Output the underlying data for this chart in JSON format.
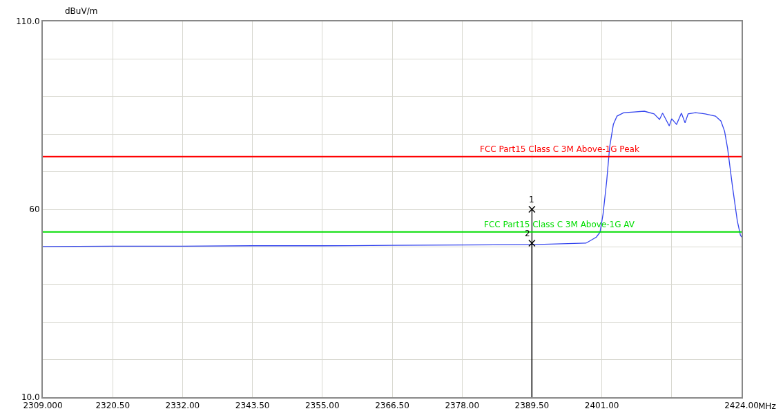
{
  "chart_data": {
    "type": "line",
    "xlabel": "MHz",
    "ylabel": "dBuV/m",
    "xlim": [
      2309,
      2424
    ],
    "ylim": [
      10,
      110
    ],
    "xticks": [
      {
        "value": 2309,
        "label": "2309.000"
      },
      {
        "value": 2320.5,
        "label": "2320.50"
      },
      {
        "value": 2332,
        "label": "2332.00"
      },
      {
        "value": 2343.5,
        "label": "2343.50"
      },
      {
        "value": 2355,
        "label": "2355.00"
      },
      {
        "value": 2366.5,
        "label": "2366.50"
      },
      {
        "value": 2378,
        "label": "2378.00"
      },
      {
        "value": 2389.5,
        "label": "2389.50"
      },
      {
        "value": 2401,
        "label": "2401.00"
      },
      {
        "value": 2412.5,
        "label": null
      },
      {
        "value": 2424,
        "label": "2424.00"
      }
    ],
    "yticks": [
      {
        "value": 10,
        "label": "10.0"
      },
      {
        "value": 20,
        "label": null
      },
      {
        "value": 30,
        "label": null
      },
      {
        "value": 40,
        "label": null
      },
      {
        "value": 50,
        "label": null
      },
      60,
      {
        "value": 70,
        "label": null
      },
      {
        "value": 80,
        "label": null
      },
      {
        "value": 90,
        "label": null
      },
      {
        "value": 100,
        "label": null
      },
      {
        "value": 110,
        "label": "110.0"
      }
    ],
    "grid": true,
    "series": [
      {
        "color": "#3344ee",
        "marker": "none",
        "x": [
          2309,
          2320.5,
          2332,
          2343.5,
          2355,
          2366.5,
          2378,
          2389.5,
          2398.4,
          2400.1,
          2400.7,
          2401.2,
          2401.8,
          2402.3,
          2402.9,
          2403.5,
          2404.6,
          2406.3,
          2408.0,
          2409.6,
          2410.5,
          2411.0,
          2412.1,
          2412.5,
          2413.3,
          2414.1,
          2414.7,
          2415.2,
          2416.4,
          2418.0,
          2419.7,
          2420.6,
          2421.2,
          2421.7,
          2422.5,
          2423.3,
          2423.8,
          2424
        ],
        "values": [
          50.1,
          50.2,
          50.2,
          50.3,
          50.3,
          50.4,
          50.5,
          50.6,
          51.0,
          52.6,
          53.9,
          58.7,
          67.5,
          76.7,
          82.6,
          84.8,
          85.7,
          85.9,
          86.1,
          85.4,
          83.9,
          85.6,
          82.2,
          84.1,
          82.6,
          85.6,
          83.0,
          85.4,
          85.7,
          85.4,
          84.8,
          83.5,
          80.8,
          76.2,
          66.1,
          56.9,
          53.2,
          52.6
        ]
      },
      {
        "type": "lollipop",
        "color": "#000000",
        "marker": "cross",
        "x": [
          2389.5,
          2389.5
        ],
        "values": [
          60.0,
          51.0
        ]
      }
    ],
    "ref_lines": [
      {
        "axis": "y",
        "value": 74,
        "label": "FCC Part15 Class C 3M Above-1G Peak",
        "color": "#ff0000"
      },
      {
        "axis": "y",
        "value": 54,
        "label": "FCC Part15 Class C 3M Above-1G AV",
        "color": "#00dd00"
      }
    ],
    "annotations": [
      {
        "text": "1",
        "x": 2389.5,
        "y": 60.0
      },
      {
        "text": "2",
        "x": 2389.5,
        "y": 51.0
      }
    ]
  }
}
